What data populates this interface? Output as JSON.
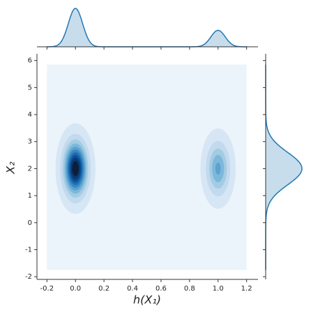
{
  "chart_data": {
    "type": "jointkde",
    "xlabel": "h(X₁)",
    "ylabel": "X₂",
    "xlim": [
      -0.27,
      1.28
    ],
    "ylim": [
      -2.1,
      6.25
    ],
    "xticks": [
      -0.2,
      {
        "value": 0,
        "label": "0.0"
      },
      0.2,
      0.4,
      0.6,
      0.8,
      {
        "value": 1,
        "label": "1.0"
      },
      1.2
    ],
    "yticks": [
      -2,
      -1,
      0,
      1,
      2,
      3,
      4,
      5,
      6
    ],
    "support": {
      "x": [
        -0.2,
        1.2
      ],
      "y": [
        -1.75,
        5.85
      ]
    },
    "components": [
      {
        "x": 0,
        "y": 2,
        "sx": 0.05,
        "sy": 0.6,
        "weight": 0.7
      },
      {
        "x": 1,
        "y": 2,
        "sx": 0.05,
        "sy": 0.6,
        "weight": 0.3
      }
    ],
    "levels": [
      0.014,
      0.07,
      0.14,
      0.21,
      0.28,
      0.35,
      0.42,
      0.49,
      0.56,
      0.63
    ],
    "background_color": "#ebf3fb",
    "level_colors": [
      "#d6e6f4",
      "#c2d9ee",
      "#a3cce3",
      "#7db8da",
      "#5aa2cf",
      "#3a87c0",
      "#1f6db1",
      "#0b519a",
      "#0a3a70",
      "#0b1f3a"
    ],
    "marginal_color": "#1f77b4"
  }
}
